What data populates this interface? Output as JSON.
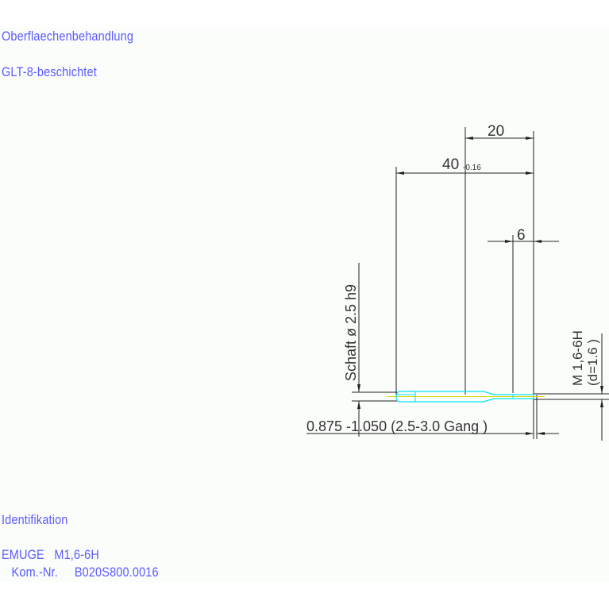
{
  "notes": {
    "surface_label": "Oberflaechenbehandlung",
    "surface_value": "GLT-8-beschichtet",
    "ident_label": "Identifikation",
    "ident_line1": "EMUGE   M1,6-6H",
    "ident_line2": "   Kom.-Nr.     B020S800.0016"
  },
  "drawing": {
    "dim_20": "20",
    "dim_40": "40",
    "dim_40_tol": "-0.16",
    "dim_6": "6",
    "shank": "Schaft ø 2.5  h9",
    "thread": "M 1,6-6H",
    "thread_d": "(d=1.6 )",
    "core_range": "0.875 -1.050 (2.5-3.0  Gang   )"
  },
  "colors": {
    "text_blue": "#5a5aff",
    "outline_cyan": "#00e5ee",
    "dim_line": "#222222",
    "center_line": "#e0d000"
  }
}
